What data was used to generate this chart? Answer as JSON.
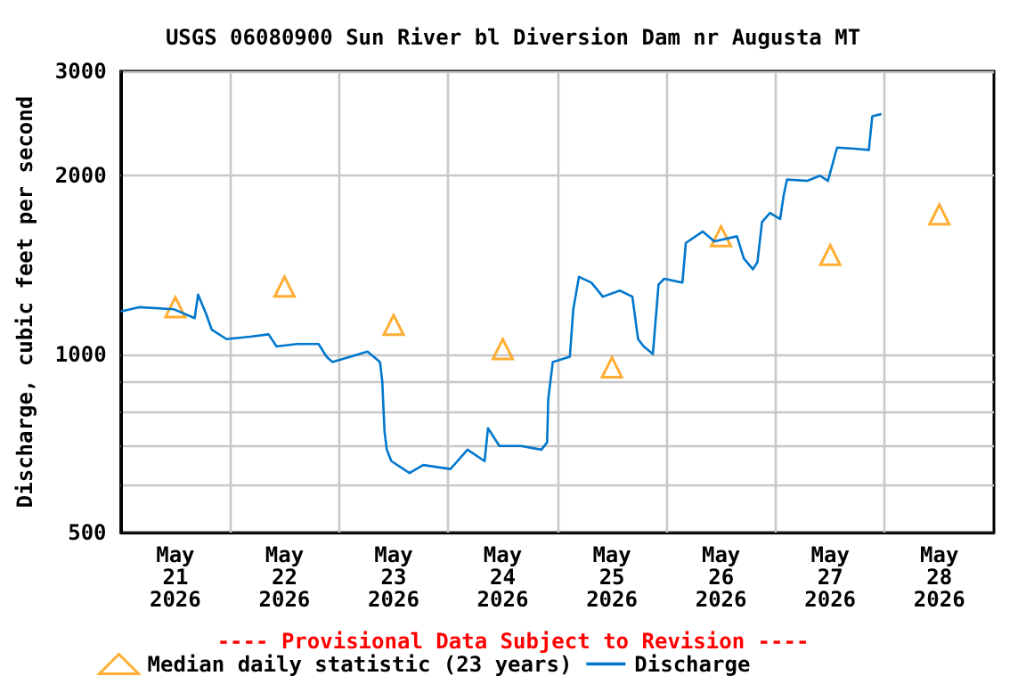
{
  "chart_data": {
    "type": "line",
    "title": "USGS 06080900 Sun River bl Diversion Dam nr Augusta MT",
    "ylabel": "Discharge, cubic feet per second",
    "annotations": [
      "---- Provisional Data Subject to Revision ----"
    ],
    "log": "y",
    "grid": true,
    "legend": "bottom",
    "xlim": [
      "2026-05-21T00:00",
      "2026-05-29T00:00"
    ],
    "xticks": [
      {
        "value": "2026-05-21T12:00",
        "label": "May\n21\n2026"
      },
      {
        "value": "2026-05-22T00:00",
        "label": null
      },
      {
        "value": "2026-05-22T12:00",
        "label": "May\n22\n2026"
      },
      {
        "value": "2026-05-23T00:00",
        "label": null
      },
      {
        "value": "2026-05-23T12:00",
        "label": "May\n23\n2026"
      },
      {
        "value": "2026-05-24T00:00",
        "label": null
      },
      {
        "value": "2026-05-24T12:00",
        "label": "May\n24\n2026"
      },
      {
        "value": "2026-05-25T00:00",
        "label": null
      },
      {
        "value": "2026-05-25T12:00",
        "label": "May\n25\n2026"
      },
      {
        "value": "2026-05-26T00:00",
        "label": null
      },
      {
        "value": "2026-05-26T12:00",
        "label": "May\n26\n2026"
      },
      {
        "value": "2026-05-27T00:00",
        "label": null
      },
      {
        "value": "2026-05-27T12:00",
        "label": "May\n27\n2026"
      },
      {
        "value": "2026-05-28T00:00",
        "label": null
      },
      {
        "value": "2026-05-28T12:00",
        "label": "May\n28\n2026"
      }
    ],
    "ylim": [
      500,
      3000
    ],
    "yticks": [
      500,
      {
        "value": 600,
        "label": null
      },
      {
        "value": 700,
        "label": null
      },
      {
        "value": 800,
        "label": null
      },
      {
        "value": 900,
        "label": null
      },
      1000,
      2000,
      3000
    ],
    "series": [
      {
        "name": "Median daily statistic (23 years)",
        "type": "scatter",
        "marker": "triangle",
        "color": "#ff9900",
        "x": [
          "2026-05-21T12:00",
          "2026-05-22T12:00",
          "2026-05-23T12:00",
          "2026-05-24T12:00",
          "2026-05-25T12:00",
          "2026-05-26T12:00",
          "2026-05-27T12:00",
          "2026-05-28T12:00"
        ],
        "values": [
          1200,
          1300,
          1120,
          1020,
          950,
          1580,
          1470,
          1720
        ]
      },
      {
        "name": "Discharge",
        "marker": "none",
        "line_style": "solid",
        "color": "#0077cc",
        "x": [
          "2026-05-21T00:00",
          "2026-05-21T04:00",
          "2026-05-21T11:45",
          "2026-05-21T16:15",
          "2026-05-21T17:00",
          "2026-05-21T18:45",
          "2026-05-21T20:00",
          "2026-05-21T23:15",
          "2026-05-22T04:30",
          "2026-05-22T08:30",
          "2026-05-22T10:15",
          "2026-05-22T14:45",
          "2026-05-22T19:30",
          "2026-05-22T21:15",
          "2026-05-22T22:30",
          "2026-05-23T02:30",
          "2026-05-23T06:15",
          "2026-05-23T09:00",
          "2026-05-23T09:30",
          "2026-05-23T10:00",
          "2026-05-23T10:30",
          "2026-05-23T11:30",
          "2026-05-23T15:30",
          "2026-05-23T18:30",
          "2026-05-24T00:30",
          "2026-05-24T04:15",
          "2026-05-24T08:00",
          "2026-05-24T08:45",
          "2026-05-24T11:15",
          "2026-05-24T16:00",
          "2026-05-24T20:30",
          "2026-05-24T21:45",
          "2026-05-24T22:00",
          "2026-05-24T23:00",
          "2026-05-25T02:45",
          "2026-05-25T03:30",
          "2026-05-25T04:45",
          "2026-05-25T07:30",
          "2026-05-25T10:00",
          "2026-05-25T13:45",
          "2026-05-25T16:30",
          "2026-05-25T17:45",
          "2026-05-25T19:00",
          "2026-05-25T21:00",
          "2026-05-25T22:15",
          "2026-05-25T23:30",
          "2026-05-26T03:30",
          "2026-05-26T04:15",
          "2026-05-26T08:00",
          "2026-05-26T10:30",
          "2026-05-26T15:30",
          "2026-05-26T17:00",
          "2026-05-26T19:00",
          "2026-05-26T20:00",
          "2026-05-26T21:00",
          "2026-05-26T22:45",
          "2026-05-27T01:00",
          "2026-05-27T01:45",
          "2026-05-27T02:30",
          "2026-05-27T07:00",
          "2026-05-27T09:45",
          "2026-05-27T11:30",
          "2026-05-27T13:30",
          "2026-05-27T17:30",
          "2026-05-27T20:30",
          "2026-05-27T21:15",
          "2026-05-27T23:15"
        ],
        "values": [
          1180,
          1200,
          1190,
          1150,
          1260,
          1170,
          1100,
          1060,
          1070,
          1080,
          1030,
          1040,
          1040,
          990,
          970,
          990,
          1010,
          970,
          900,
          740,
          690,
          660,
          630,
          650,
          640,
          690,
          660,
          750,
          700,
          700,
          690,
          710,
          840,
          970,
          990,
          1190,
          1350,
          1320,
          1250,
          1280,
          1250,
          1060,
          1030,
          1000,
          1310,
          1340,
          1320,
          1540,
          1610,
          1550,
          1580,
          1450,
          1390,
          1430,
          1670,
          1730,
          1690,
          1850,
          1970,
          1960,
          2000,
          1960,
          2230,
          2220,
          2210,
          2520,
          2540
        ]
      }
    ]
  }
}
